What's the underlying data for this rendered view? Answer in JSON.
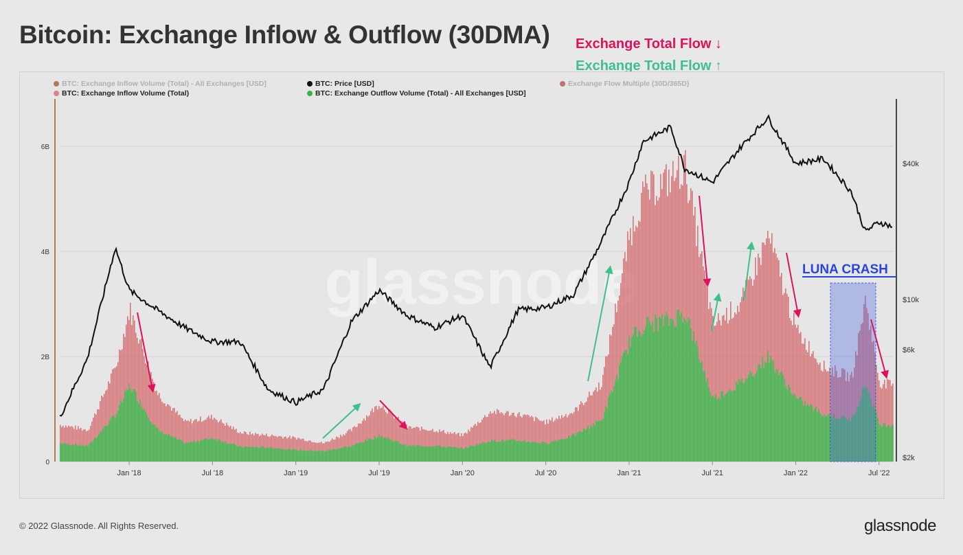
{
  "title": "Bitcoin: Exchange Inflow & Outflow (30DMA)",
  "annotations": {
    "total_flow_down": "Exchange Total Flow ↓",
    "total_flow_up": "Exchange Total Flow ↑",
    "luna": "LUNA CRASH"
  },
  "watermark": "glassnode",
  "footer": {
    "copyright": "© 2022 Glassnode. All Rights Reserved.",
    "brand": "glassnode"
  },
  "colors": {
    "inflow": "#d4686b",
    "outflow": "#3daf47",
    "price": "#111111",
    "red_arrow": "#e0105a",
    "green_arrow": "#3fbf8a",
    "luna": "#3a4ee0"
  },
  "legend": [
    {
      "label": "BTC: Exchange Inflow Volume (Total) - All Exchanges [USD]",
      "color": "#b07a5c",
      "faded": true
    },
    {
      "label": "BTC: Price [USD]",
      "color": "#111111",
      "faded": false
    },
    {
      "label": "Exchange Flow Multiple (30D/365D)",
      "color": "#c47070",
      "faded": true
    },
    {
      "label": "BTC: Exchange Inflow Volume (Total)",
      "color": "#d4868a",
      "faded": false
    },
    {
      "label": "BTC: Exchange Outflow Volume (Total) - All Exchanges [USD]",
      "color": "#3daf47",
      "faded": false
    }
  ],
  "chart_data": {
    "type": "area",
    "x_tick_labels": [
      "Jan '18",
      "Jul '18",
      "Jan '19",
      "Jul '19",
      "Jan '20",
      "Jul '20",
      "Jan '21",
      "Jul '21",
      "Jan '22",
      "Jul '22"
    ],
    "y_left_tick_labels": [
      "0",
      "2B",
      "4B",
      "6B"
    ],
    "y_right_tick_labels": [
      "$2k",
      "$6k",
      "$10k",
      "$40k"
    ],
    "y_left_unit": "USD",
    "y_left_range": [
      0,
      7000000000.0
    ],
    "y_right_scale": "log",
    "x": [
      "2017-08",
      "2017-10",
      "2017-12",
      "2018-01",
      "2018-03",
      "2018-05",
      "2018-07",
      "2018-09",
      "2018-11",
      "2019-01",
      "2019-03",
      "2019-05",
      "2019-07",
      "2019-09",
      "2019-11",
      "2020-01",
      "2020-03",
      "2020-05",
      "2020-07",
      "2020-09",
      "2020-11",
      "2021-01",
      "2021-02",
      "2021-04",
      "2021-05",
      "2021-07",
      "2021-09",
      "2021-11",
      "2022-01",
      "2022-03",
      "2022-05",
      "2022-06",
      "2022-07",
      "2022-08"
    ],
    "series": [
      {
        "name": "BTC: Exchange Inflow Volume (Total)",
        "values": [
          700000000.0,
          600000000.0,
          1800000000.0,
          2900000000.0,
          1300000000.0,
          750000000.0,
          850000000.0,
          550000000.0,
          500000000.0,
          450000000.0,
          350000000.0,
          600000000.0,
          1100000000.0,
          650000000.0,
          600000000.0,
          500000000.0,
          950000000.0,
          900000000.0,
          750000000.0,
          950000000.0,
          1500000000.0,
          4300000000.0,
          5100000000.0,
          5400000000.0,
          5600000000.0,
          2600000000.0,
          3000000000.0,
          4300000000.0,
          2500000000.0,
          1800000000.0,
          1600000000.0,
          3100000000.0,
          1500000000.0,
          1450000000.0
        ]
      },
      {
        "name": "BTC: Exchange Outflow Volume (Total) - All Exchanges [USD]",
        "values": [
          350000000.0,
          300000000.0,
          900000000.0,
          1450000000.0,
          600000000.0,
          350000000.0,
          450000000.0,
          280000000.0,
          270000000.0,
          220000000.0,
          200000000.0,
          300000000.0,
          500000000.0,
          300000000.0,
          300000000.0,
          250000000.0,
          400000000.0,
          400000000.0,
          350000000.0,
          500000000.0,
          800000000.0,
          2300000000.0,
          2600000000.0,
          2700000000.0,
          2850000000.0,
          1200000000.0,
          1500000000.0,
          2000000000.0,
          1200000000.0,
          900000000.0,
          800000000.0,
          1500000000.0,
          700000000.0,
          700000000.0
        ]
      },
      {
        "name": "BTC: Price [USD]",
        "values": [
          3000,
          5500,
          17000,
          11000,
          9000,
          7500,
          6500,
          6500,
          4000,
          3500,
          4000,
          8000,
          11000,
          8500,
          7500,
          8500,
          5000,
          9000,
          9200,
          10500,
          18000,
          33000,
          50000,
          58000,
          38000,
          33000,
          47000,
          64000,
          40000,
          42000,
          30000,
          20000,
          22000,
          21000
        ]
      }
    ]
  }
}
